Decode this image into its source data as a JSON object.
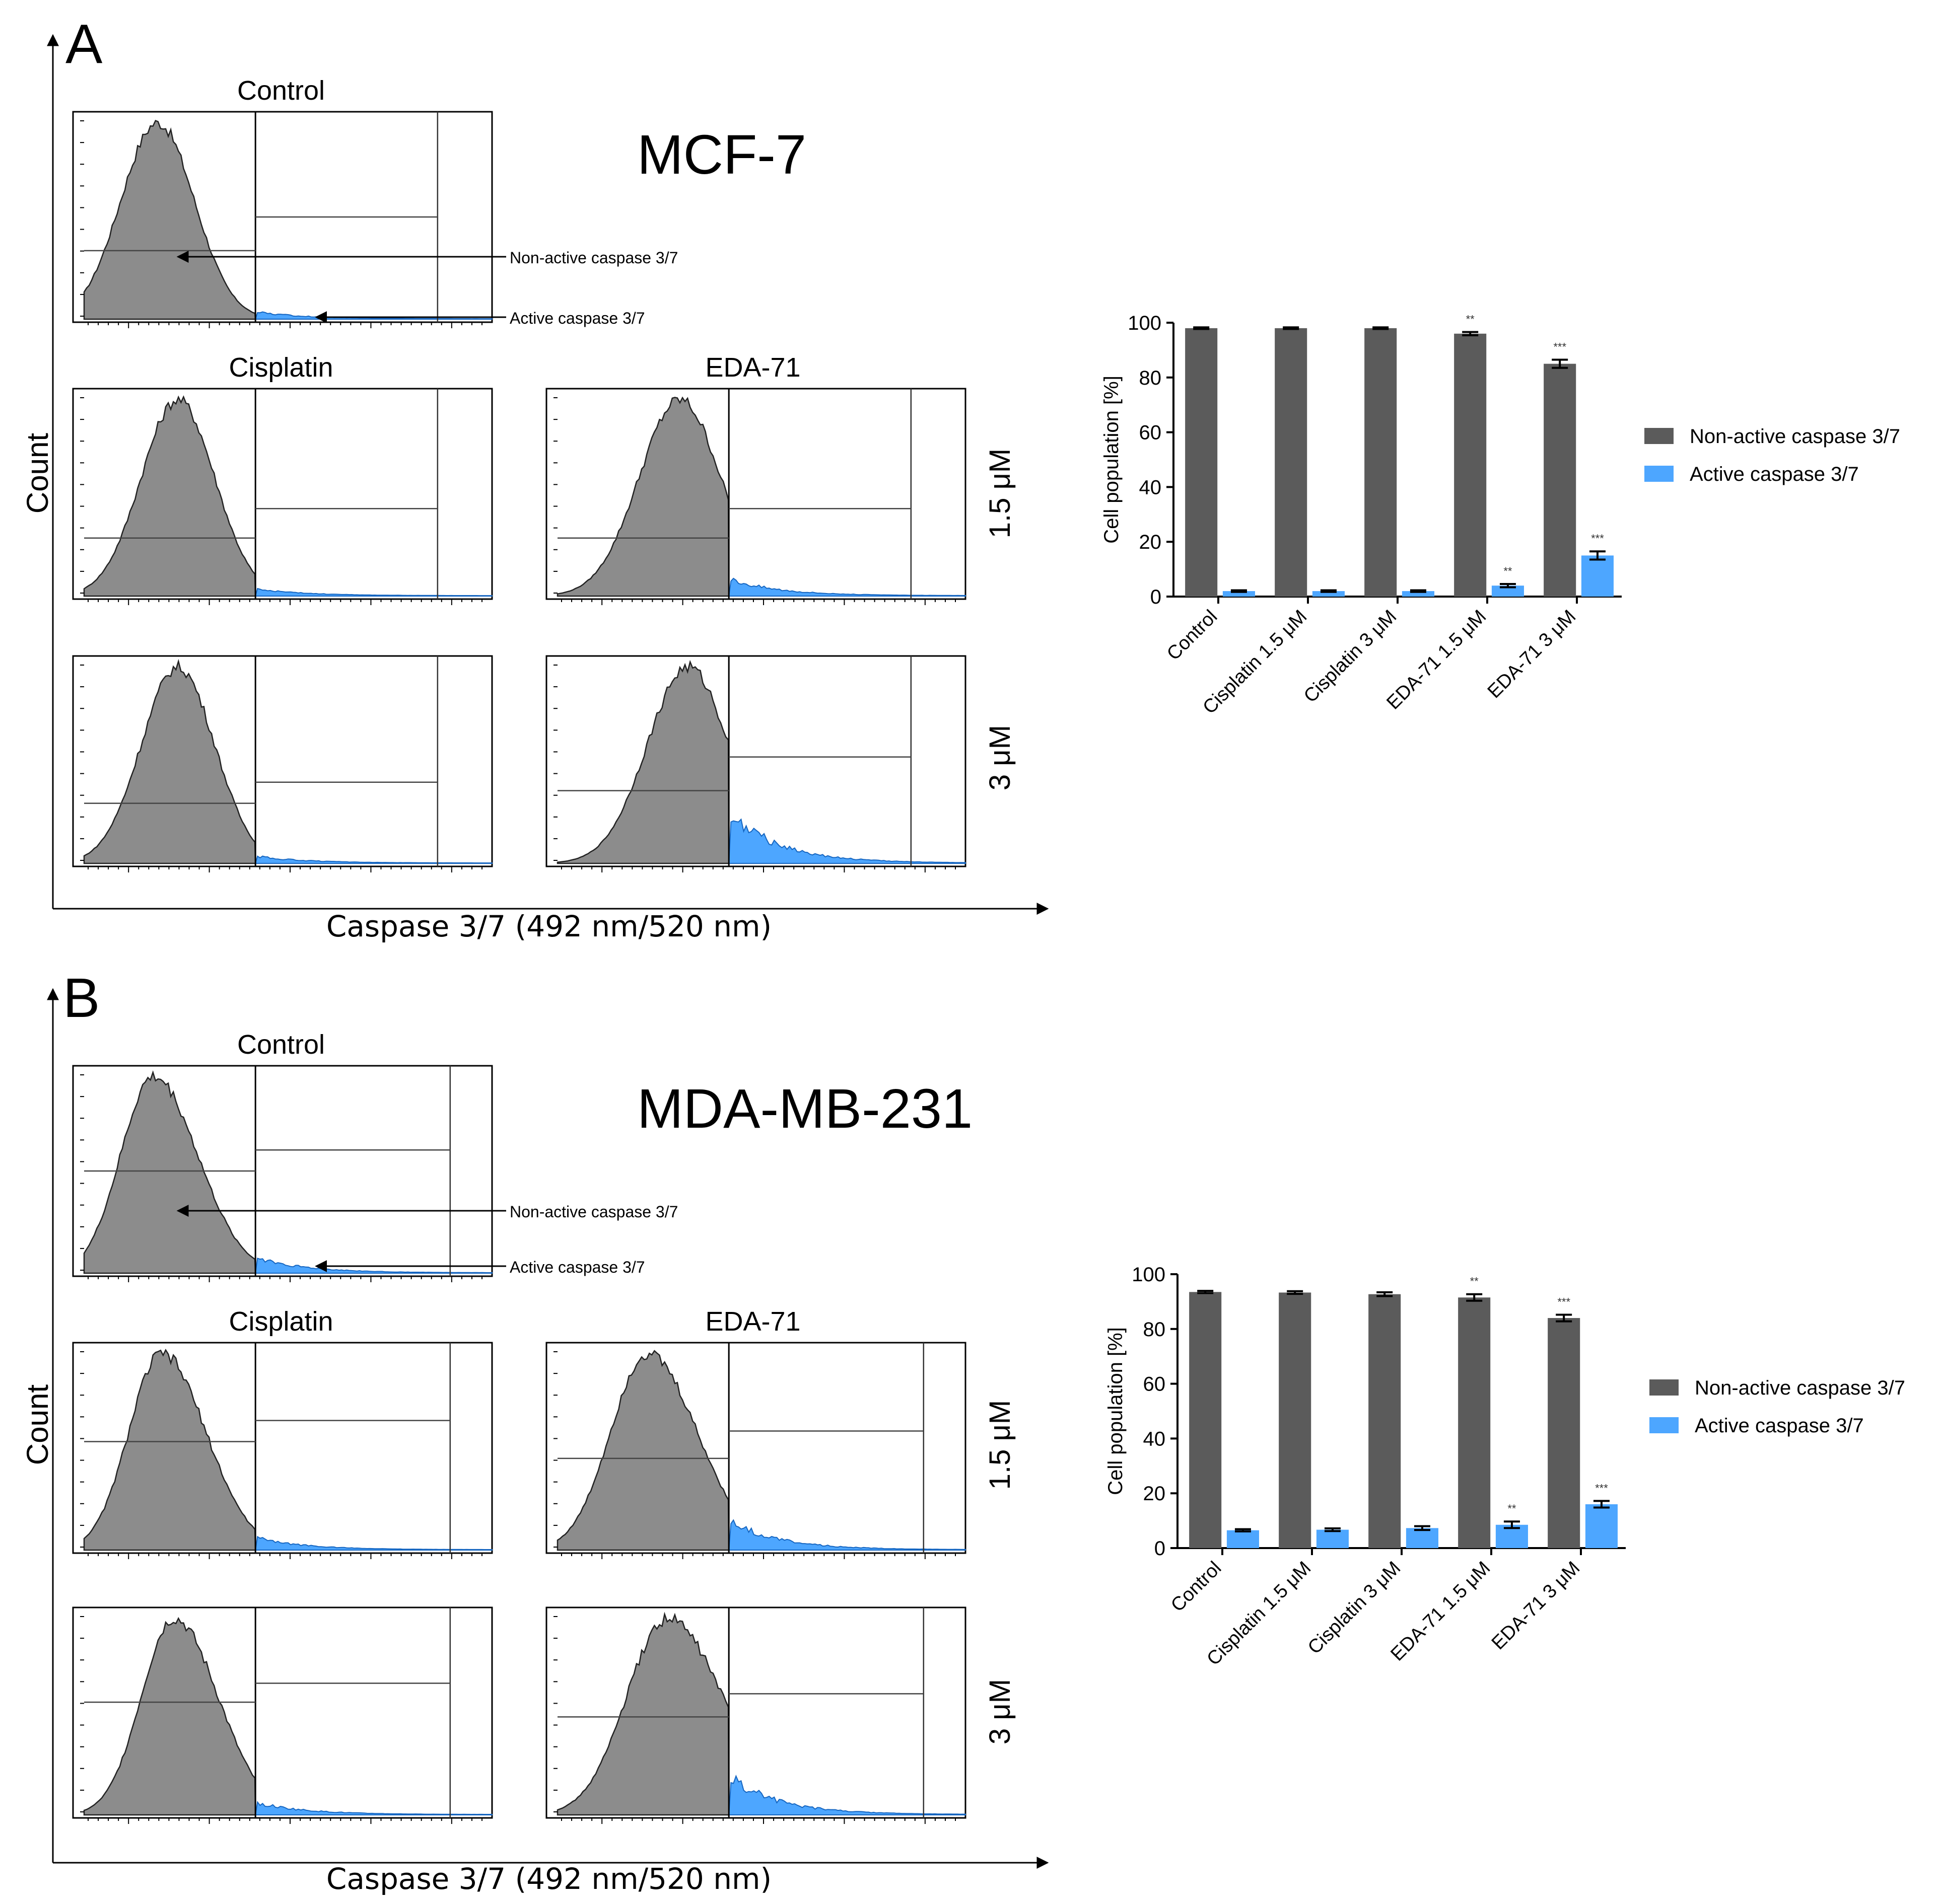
{
  "colors": {
    "histogram_fill": "#8c8c8c",
    "active_fill": "#4da6ff",
    "bar_dark": "#5b5b5b",
    "bar_blue": "#4da6ff"
  },
  "figure": {
    "panels": [
      {
        "letter": "A",
        "cell_line": "MCF-7",
        "count_label": "Count",
        "x_axis_label": "Caspase 3/7 (492 nm/520 nm)",
        "control_title": "Control",
        "col_titles": [
          "Cisplatin",
          "EDA-71"
        ],
        "row_labels": [
          "1.5 μM",
          "3 μM"
        ],
        "annotations": [
          "Non-active caspase 3/7",
          "Active caspase 3/7"
        ]
      },
      {
        "letter": "B",
        "cell_line": "MDA-MB-231",
        "count_label": "Count",
        "x_axis_label": "Caspase 3/7 (492 nm/520 nm)",
        "control_title": "Control",
        "col_titles": [
          "Cisplatin",
          "EDA-71"
        ],
        "row_labels": [
          "1.5 μM",
          "3 μM"
        ],
        "annotations": [
          "Non-active caspase 3/7",
          "Active caspase 3/7"
        ]
      }
    ]
  },
  "chart_data": [
    {
      "type": "bar",
      "panel": "A",
      "categories": [
        "Control",
        "Cisplatin 1.5 μM",
        "Cisplatin 3 μM",
        "EDA-71 1.5 μM",
        "EDA-71 3 μM"
      ],
      "ylabel": "Cell population [%]",
      "ylim": [
        0,
        100
      ],
      "yticks": [
        "0",
        "20",
        "40",
        "60",
        "80",
        "100"
      ],
      "legend_position": "right",
      "series": [
        {
          "name": "Non-active caspase 3/7",
          "values": [
            98,
            98,
            98,
            96,
            85
          ],
          "errors": [
            0.3,
            0.3,
            0.3,
            0.6,
            1.5
          ],
          "significance": [
            "",
            "",
            "",
            "**",
            "***"
          ]
        },
        {
          "name": "Active caspase 3/7",
          "values": [
            2,
            2,
            2,
            4,
            15
          ],
          "errors": [
            0.3,
            0.3,
            0.3,
            0.6,
            1.5
          ],
          "significance": [
            "",
            "",
            "",
            "**",
            "***"
          ]
        }
      ]
    },
    {
      "type": "bar",
      "panel": "B",
      "categories": [
        "Control",
        "Cisplatin 1.5 μM",
        "Cisplatin 3 μM",
        "EDA-71 1.5 μM",
        "EDA-71 3 μM"
      ],
      "ylabel": "Cell population [%]",
      "ylim": [
        0,
        100
      ],
      "yticks": [
        "0",
        "20",
        "40",
        "60",
        "80",
        "100"
      ],
      "legend_position": "right",
      "series": [
        {
          "name": "Non-active caspase 3/7",
          "values": [
            93.5,
            93.3,
            92.7,
            91.5,
            84
          ],
          "errors": [
            0.4,
            0.5,
            0.7,
            1.2,
            1.2
          ],
          "significance": [
            "",
            "",
            "",
            "**",
            "***"
          ]
        },
        {
          "name": "Active caspase 3/7",
          "values": [
            6.5,
            6.7,
            7.3,
            8.5,
            16
          ],
          "errors": [
            0.4,
            0.5,
            0.7,
            1.2,
            1.2
          ],
          "significance": [
            "",
            "",
            "",
            "**",
            "***"
          ]
        }
      ]
    }
  ]
}
